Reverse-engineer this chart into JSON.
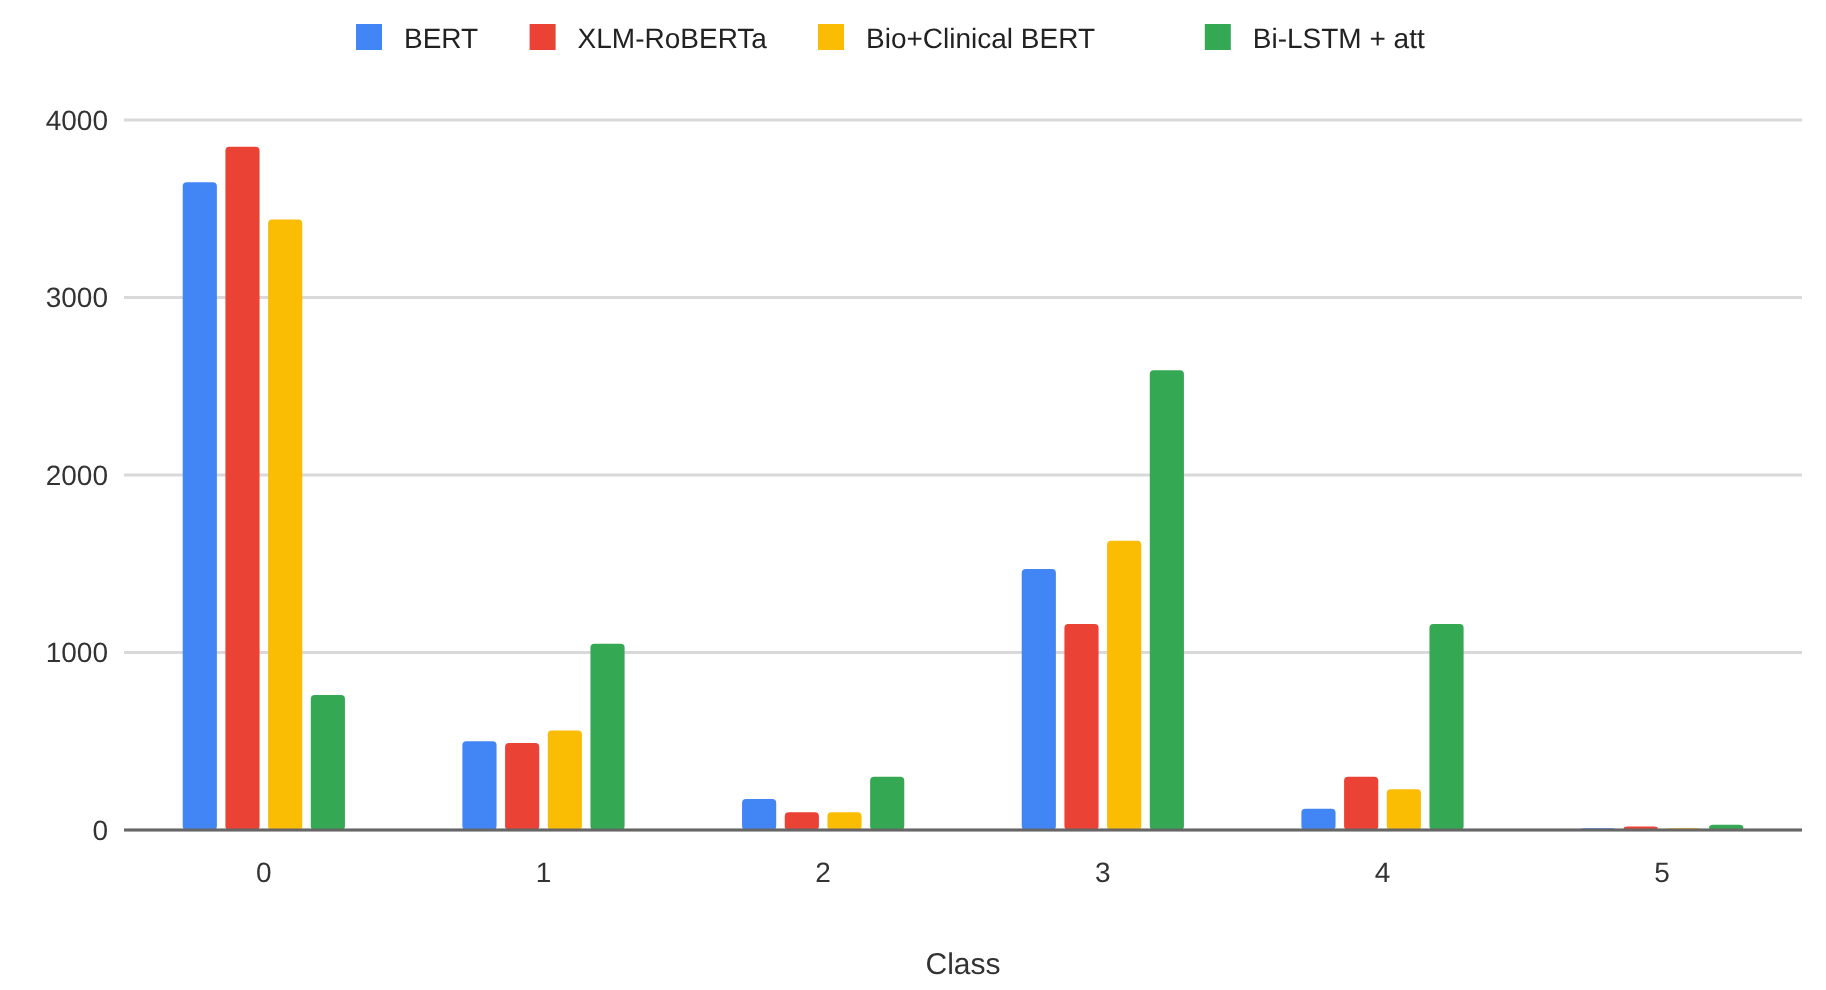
{
  "chart_data": {
    "type": "bar",
    "xlabel": "Class",
    "categories": [
      "0",
      "1",
      "2",
      "3",
      "4",
      "5"
    ],
    "series": [
      {
        "name": "BERT",
        "color": "#4285f4",
        "values": [
          3650,
          500,
          175,
          1470,
          120,
          10
        ]
      },
      {
        "name": "XLM-RoBERTa",
        "color": "#ea4335",
        "values": [
          3850,
          490,
          100,
          1160,
          300,
          20
        ]
      },
      {
        "name": "Bio+Clinical BERT",
        "color": "#fbbc04",
        "values": [
          3440,
          560,
          100,
          1630,
          230,
          10
        ]
      },
      {
        "name": "Bi-LSTM + att",
        "color": "#34a853",
        "values": [
          760,
          1050,
          300,
          2590,
          1160,
          30
        ]
      }
    ],
    "ylim": [
      0,
      4000
    ],
    "yticks": [
      0,
      1000,
      2000,
      3000,
      4000
    ],
    "grid": "y",
    "legend": "top"
  }
}
